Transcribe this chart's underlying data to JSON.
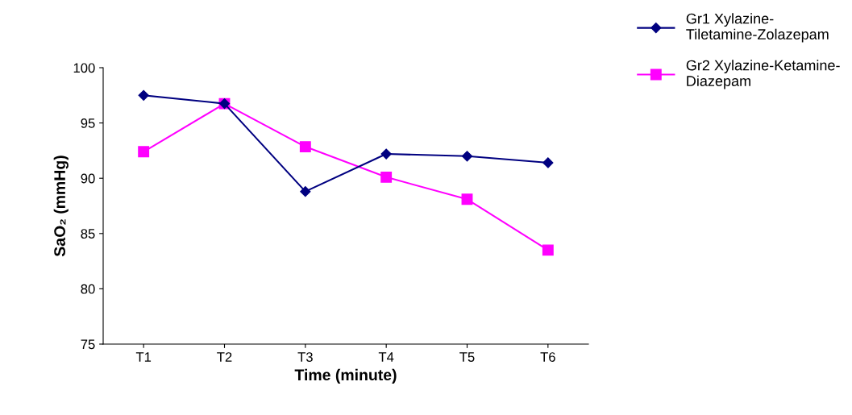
{
  "chart_data": {
    "type": "line",
    "xlabel": "Time (minute)",
    "ylabel": "SaO₂ (mmHg)",
    "categories": [
      "T1",
      "T2",
      "T3",
      "T4",
      "T5",
      "T6"
    ],
    "series": [
      {
        "name": "Gr1 Xylazine-\nTiletamine-Zolazepam",
        "color": "#000080",
        "marker": "diamond",
        "values": [
          97.5,
          96.75,
          88.8,
          92.2,
          92.0,
          91.4
        ]
      },
      {
        "name": "Gr2 Xylazine-Ketamine-\nDiazepam",
        "color": "#ff00ff",
        "marker": "square",
        "values": [
          92.4,
          96.75,
          92.85,
          90.1,
          88.1,
          83.5
        ]
      }
    ],
    "ylim": [
      75,
      100
    ],
    "yticks": [
      75,
      80,
      85,
      90,
      95,
      100
    ],
    "grid": false,
    "legend": "top right",
    "line_style": "solid"
  }
}
